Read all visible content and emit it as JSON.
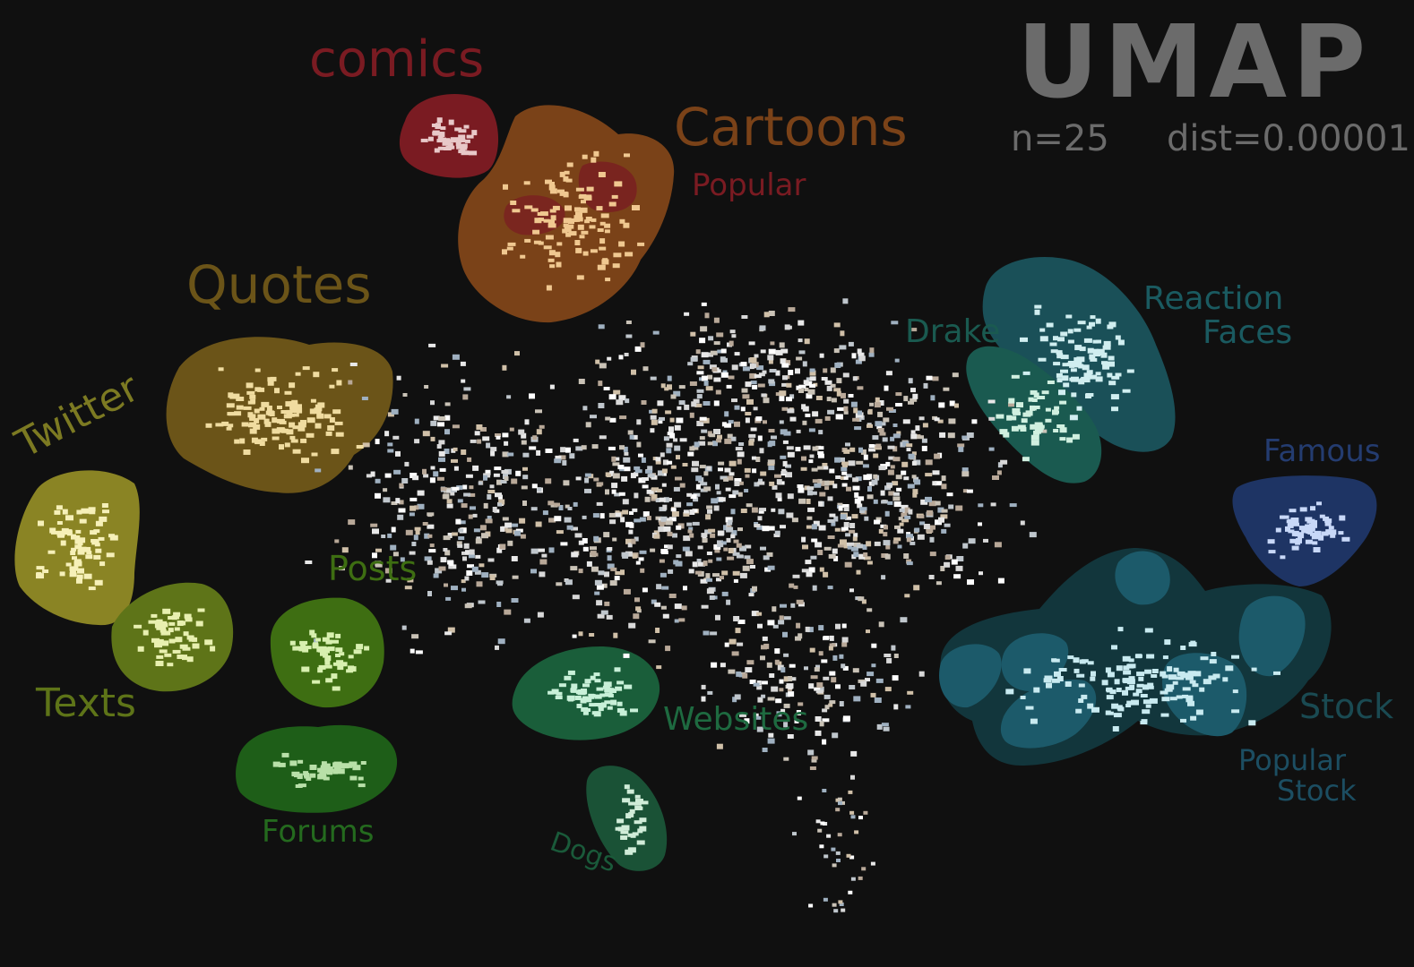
{
  "title": "UMAP",
  "params": {
    "n": "n=25",
    "dist": "dist=0.00001"
  },
  "colors": {
    "background": "#101010",
    "title": "#6b6b6b",
    "comics": "#7a1b22",
    "cartoons": "#7a4218",
    "popular": "#7a1b22",
    "quotes": "#6b5418",
    "twitter": "#8a8424",
    "texts": "#5e7418",
    "posts": "#3e6e12",
    "forums": "#1e5e18",
    "websites": "#1a5e3a",
    "dogs": "#1a5236",
    "drake": "#1a5a50",
    "reaction": "#1a5058",
    "famous": "#1e3464",
    "stock_outer": "#12363c",
    "stock_inner": "#1c5a6a"
  },
  "clusters": [
    {
      "id": "comics",
      "label": "comics",
      "color": "#7a1b22",
      "label_color": "#7a1b22",
      "dot": "#e8c8c8"
    },
    {
      "id": "cartoons",
      "label": "Cartoons",
      "color": "#7a4218",
      "label_color": "#7a4218",
      "dot": "#f0c890"
    },
    {
      "id": "popular",
      "label": "Popular",
      "color": "#7a1b22",
      "label_color": "#7a1b22",
      "dot": "#e8b0a0"
    },
    {
      "id": "quotes",
      "label": "Quotes",
      "color": "#6b5418",
      "label_color": "#6b5418",
      "dot": "#f0dca0"
    },
    {
      "id": "twitter",
      "label": "Twitter",
      "color": "#8a8424",
      "label_color": "#7c7a22",
      "dot": "#f6f0b8"
    },
    {
      "id": "texts",
      "label": "Texts",
      "color": "#5e7418",
      "label_color": "#5e7418",
      "dot": "#e8f0b0"
    },
    {
      "id": "posts",
      "label": "Posts",
      "color": "#3e6e12",
      "label_color": "#3e6e12",
      "dot": "#d8f0b0"
    },
    {
      "id": "forums",
      "label": "Forums",
      "color": "#1e5e18",
      "label_color": "#246a1e",
      "dot": "#b8e0a8"
    },
    {
      "id": "websites",
      "label": "Websites",
      "color": "#1a5e3a",
      "label_color": "#1e6a40",
      "dot": "#c8f0d8"
    },
    {
      "id": "dogs",
      "label": "Dogs",
      "color": "#1a5236",
      "label_color": "#1a5a3a",
      "dot": "#d0ecd8"
    },
    {
      "id": "drake",
      "label": "Drake",
      "color": "#1a5a50",
      "label_color": "#1a5a50",
      "dot": "#d0f0e0"
    },
    {
      "id": "reaction",
      "label": "Reaction Faces",
      "color": "#1a5058",
      "label_color": "#1a5a60",
      "dot": "#d0eef0"
    },
    {
      "id": "famous",
      "label": "Famous",
      "color": "#1e3464",
      "label_color": "#243c70",
      "dot": "#c8d8f8"
    },
    {
      "id": "stock",
      "label": "Stock",
      "color": "#12363c",
      "label_color": "#1a4a52",
      "dot": "#c8eaf0"
    },
    {
      "id": "popular_stock",
      "label": "Popular Stock",
      "color": "#1c5a6a",
      "label_color": "#1c4e62",
      "dot": "#c8eaf0"
    }
  ]
}
